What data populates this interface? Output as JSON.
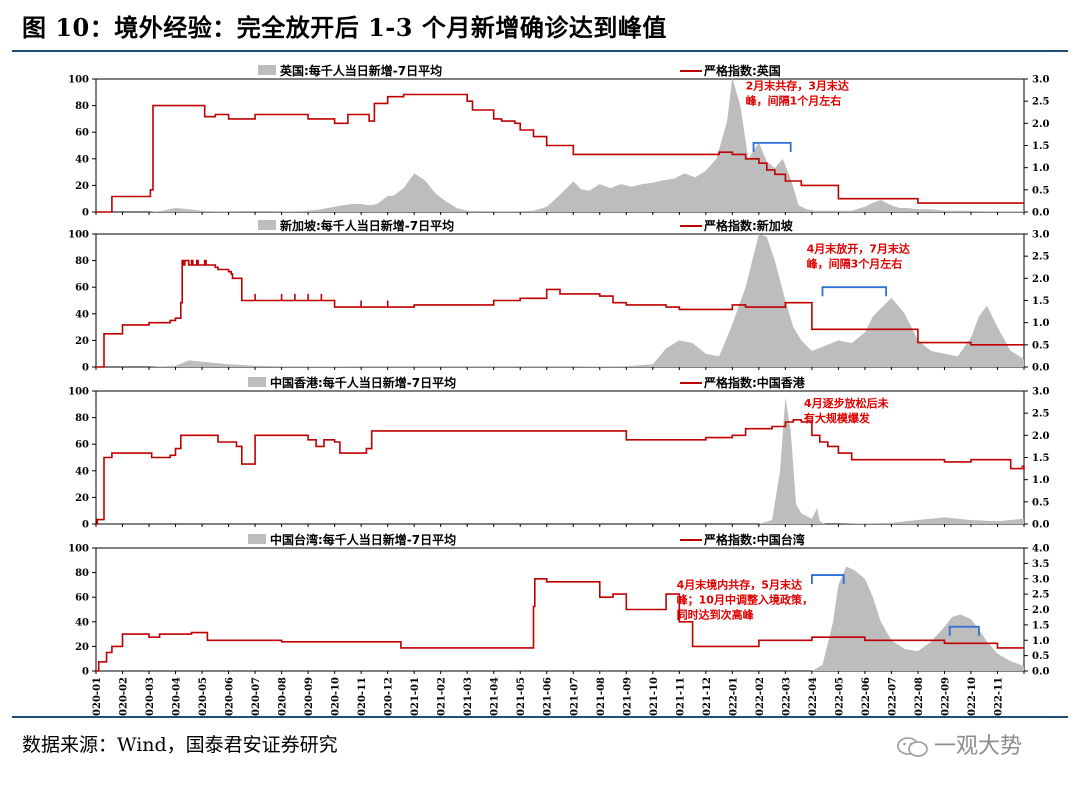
{
  "figure": {
    "title": "图 10：境外经验：完全放开后 1-3 个月新增确诊达到峰值",
    "source": "数据来源：Wind，国泰君安证券研究",
    "watermark": "一观大势"
  },
  "colors": {
    "area": "#bdbdbd",
    "line": "#c00000",
    "annotation": "#e00000",
    "bracket": "#2e6fd8",
    "rule": "#1f4e79"
  },
  "x_axis_labels": [
    "2020-01",
    "2020-02",
    "2020-03",
    "2020-04",
    "2020-05",
    "2020-06",
    "2020-07",
    "2020-08",
    "2020-09",
    "2020-10",
    "2020-11",
    "2020-12",
    "2021-01",
    "2021-02",
    "2021-03",
    "2021-04",
    "2021-05",
    "2021-06",
    "2021-07",
    "2021-08",
    "2021-09",
    "2021-10",
    "2021-11",
    "2021-12",
    "2022-01",
    "2022-02",
    "2022-03",
    "2022-04",
    "2022-05",
    "2022-06",
    "2022-07",
    "2022-08",
    "2022-09",
    "2022-10",
    "2022-11"
  ],
  "chart_data": [
    {
      "type": "area+line",
      "legend": [
        "英国:每千人当日新增-7日平均",
        "严格指数:英国"
      ],
      "ylim": [
        0,
        100
      ],
      "y2lim": [
        0,
        3
      ],
      "yticks": [
        0,
        20,
        40,
        60,
        80,
        100
      ],
      "y2ticks": [
        "0.0",
        "0.5",
        "1.0",
        "1.5",
        "2.0",
        "2.5",
        "3.0"
      ],
      "area_series": {
        "name": "英国:每千人当日新增-7日平均",
        "x": [
          0,
          1,
          1.5,
          2,
          2.5,
          3,
          3.5,
          4,
          4.5,
          5,
          5.5,
          6,
          6.5,
          7,
          7.5,
          8,
          8.5,
          9,
          9.3,
          9.7,
          10,
          10.3,
          10.6,
          11,
          11.2,
          11.6,
          12,
          12.4,
          12.8,
          13.2,
          13.6,
          14,
          15,
          16,
          16.5,
          17,
          17.5,
          18,
          18.3,
          18.6,
          19,
          19.4,
          19.8,
          20.2,
          20.6,
          21,
          21.4,
          21.8,
          22.2,
          22.6,
          23,
          23.4,
          23.8,
          24,
          24.3,
          24.6,
          25,
          25.3,
          25.6,
          25.9,
          26.2,
          26.5,
          26.8,
          27.1,
          27.5,
          28,
          28.5,
          29,
          29.3,
          29.6,
          30,
          30.3,
          30.6,
          31,
          31.5,
          32,
          32.5,
          33,
          33.5,
          34,
          34.5,
          35
        ],
        "values": [
          0,
          0,
          0,
          0,
          1,
          3,
          2,
          1,
          0.5,
          0.3,
          0.2,
          0.2,
          0.2,
          0.3,
          0.5,
          1,
          2,
          4,
          5,
          6,
          6,
          5,
          6,
          12,
          12,
          18,
          29,
          24,
          14,
          8,
          3,
          1,
          0.5,
          0.5,
          1,
          4,
          13,
          23,
          17,
          16,
          21,
          18,
          21,
          19,
          21,
          22,
          24,
          25,
          29,
          26,
          31,
          40,
          68,
          101,
          80,
          40,
          52,
          38,
          33,
          40,
          25,
          5,
          2,
          1,
          1,
          1,
          1,
          4,
          7,
          9,
          5,
          3,
          3,
          2,
          2,
          1,
          1,
          1,
          0.5,
          0.5,
          0.5,
          0.5
        ]
      },
      "line_series": {
        "name": "严格指数:英国",
        "x": [
          0,
          0.5,
          0.6,
          1,
          1.6,
          2,
          2.05,
          2.15,
          3,
          4,
          4.1,
          4.5,
          5,
          5.5,
          6,
          6.3,
          7,
          8,
          9,
          9.5,
          10,
          10.3,
          10.5,
          11,
          11.2,
          11.6,
          12,
          13,
          14,
          14.2,
          15,
          15.3,
          15.8,
          16,
          16.5,
          17,
          18,
          19,
          20,
          21,
          22,
          23,
          23.5,
          24,
          24.5,
          25,
          25.3,
          25.6,
          26,
          26.3,
          26.6,
          27,
          28,
          29,
          30,
          30.5,
          31,
          32,
          33,
          34,
          35
        ],
        "values": [
          0,
          0,
          0.35,
          0.35,
          0.35,
          0.35,
          0.5,
          2.4,
          2.4,
          2.4,
          2.15,
          2.2,
          2.1,
          2.1,
          2.2,
          2.2,
          2.2,
          2.1,
          2.0,
          2.2,
          2.2,
          2.05,
          2.45,
          2.6,
          2.6,
          2.65,
          2.65,
          2.65,
          2.5,
          2.3,
          2.1,
          2.05,
          2.0,
          1.85,
          1.7,
          1.5,
          1.3,
          1.3,
          1.3,
          1.3,
          1.3,
          1.3,
          1.35,
          1.3,
          1.2,
          1.1,
          0.95,
          0.85,
          0.7,
          0.7,
          0.6,
          0.6,
          0.3,
          0.3,
          0.3,
          0.3,
          0.2,
          0.2,
          0.2,
          0.2,
          0.2
        ]
      },
      "annotation": {
        "text": [
          "2月末共存，3月末达",
          "峰，间隔1个月左右"
        ],
        "x": 24.5,
        "y": 92
      },
      "bracket": {
        "x1": 24.8,
        "x2": 26.2,
        "y": 52
      }
    },
    {
      "type": "area+line",
      "legend": [
        "新加坡:每千人当日新增-7日平均",
        "严格指数:新加坡"
      ],
      "ylim": [
        0,
        100
      ],
      "y2lim": [
        0,
        3
      ],
      "yticks": [
        0,
        20,
        40,
        60,
        80,
        100
      ],
      "y2ticks": [
        "0.0",
        "0.5",
        "1.0",
        "1.5",
        "2.0",
        "2.5",
        "3.0"
      ],
      "area_series": {
        "name": "新加坡:每千人当日新增-7日平均",
        "x": [
          0,
          2,
          3,
          3.5,
          4,
          4.5,
          5,
          6,
          7,
          10,
          15,
          18,
          20,
          21,
          21.5,
          22,
          22.5,
          23,
          23.5,
          24,
          24.5,
          25,
          25.3,
          25.6,
          26,
          26.3,
          26.6,
          27,
          27.5,
          28,
          28.5,
          29,
          29.3,
          29.6,
          30,
          30.5,
          31,
          31.5,
          32,
          32.5,
          33,
          33.3,
          33.6,
          34,
          34.5,
          35
        ],
        "values": [
          0,
          0,
          1,
          5,
          4,
          3,
          2,
          1,
          0.5,
          0.3,
          0.3,
          0.3,
          0.5,
          2,
          14,
          20,
          18,
          10,
          8,
          32,
          60,
          100,
          98,
          80,
          50,
          30,
          20,
          12,
          16,
          20,
          18,
          26,
          38,
          44,
          52,
          40,
          20,
          12,
          10,
          8,
          22,
          38,
          46,
          30,
          12,
          6
        ]
      },
      "line_series": {
        "name": "严格指数:新加坡",
        "x": [
          0,
          0.2,
          0.3,
          0.7,
          1,
          2,
          2.5,
          2.8,
          3,
          3.2,
          3.25,
          3.3,
          3.35,
          3.5,
          3.6,
          3.65,
          3.8,
          3.85,
          4,
          4.1,
          4.15,
          4.2,
          4.5,
          4.6,
          5,
          5.1,
          5.15,
          5.5,
          6,
          6,
          6,
          7,
          7,
          7,
          7.5,
          7.5,
          7.5,
          8,
          8,
          8,
          8.5,
          8.5,
          8.5,
          9,
          9,
          9,
          10,
          10,
          10,
          11,
          11,
          11,
          12,
          13,
          14,
          15,
          15.5,
          16,
          17,
          17,
          17,
          17.5,
          18,
          19,
          19.5,
          20,
          21,
          21.5,
          22,
          23,
          23.5,
          24,
          24.5,
          25,
          26,
          26.5,
          27,
          28,
          29,
          30,
          30.5,
          31,
          32,
          33,
          34,
          35
        ],
        "values": [
          0,
          0,
          0.75,
          0.75,
          0.95,
          1.0,
          1.0,
          1.05,
          1.1,
          1.45,
          2.4,
          2.3,
          2.4,
          2.3,
          2.4,
          2.3,
          2.4,
          2.3,
          2.3,
          2.4,
          2.3,
          2.3,
          2.25,
          2.2,
          2.15,
          2.1,
          2.0,
          1.5,
          1.5,
          1.65,
          1.5,
          1.5,
          1.65,
          1.5,
          1.5,
          1.65,
          1.5,
          1.5,
          1.65,
          1.5,
          1.5,
          1.65,
          1.5,
          1.35,
          1.5,
          1.35,
          1.35,
          1.5,
          1.35,
          1.35,
          1.5,
          1.35,
          1.4,
          1.4,
          1.4,
          1.5,
          1.5,
          1.55,
          1.75,
          1.65,
          1.75,
          1.65,
          1.65,
          1.6,
          1.45,
          1.4,
          1.4,
          1.35,
          1.3,
          1.3,
          1.3,
          1.4,
          1.35,
          1.35,
          1.45,
          1.45,
          0.85,
          0.85,
          0.85,
          0.85,
          0.85,
          0.55,
          0.55,
          0.5,
          0.5,
          0.5
        ]
      },
      "annotation": {
        "text": [
          "4月末放开，7月末达",
          "峰，间隔3个月左右"
        ],
        "x": 26.8,
        "y": 86
      },
      "bracket": {
        "x1": 27.4,
        "x2": 29.8,
        "y": 60
      }
    },
    {
      "type": "area+line",
      "legend": [
        "中国香港:每千人当日新增-7日平均",
        "严格指数:中国香港"
      ],
      "ylim": [
        0,
        100
      ],
      "y2lim": [
        0,
        3
      ],
      "yticks": [
        0,
        20,
        40,
        60,
        80,
        100
      ],
      "y2ticks": [
        "0.0",
        "0.5",
        "1.0",
        "1.5",
        "2.0",
        "2.5",
        "3.0"
      ],
      "area_series": {
        "name": "中国香港:每千人当日新增-7日平均",
        "x": [
          0,
          20,
          25,
          25.5,
          25.8,
          26,
          26.2,
          26.4,
          26.6,
          27,
          27.2,
          27.3,
          27.5,
          28,
          30,
          31,
          32,
          32.5,
          33,
          34,
          35
        ],
        "values": [
          0,
          0,
          0,
          3,
          40,
          95,
          70,
          15,
          8,
          4,
          12,
          2,
          0,
          0,
          1,
          3,
          5,
          4,
          3,
          2,
          4
        ]
      },
      "line_series": {
        "name": "严格指数:中国香港",
        "x": [
          0,
          0.05,
          0.3,
          0.6,
          1,
          2,
          2.1,
          2.5,
          2.8,
          3,
          3.2,
          4,
          4.5,
          4.6,
          5,
          5.3,
          5.5,
          6,
          6,
          7,
          7.5,
          8,
          8.3,
          8.6,
          9,
          9.2,
          10,
          10.2,
          10.4,
          11,
          12,
          13,
          14,
          15,
          16,
          17,
          18,
          19,
          20,
          21,
          22,
          23,
          24,
          24.5,
          25,
          25.5,
          26,
          26.3,
          26.6,
          27,
          27.3,
          27.6,
          28,
          28.5,
          29,
          30,
          31,
          32,
          33,
          34,
          34.5,
          35
        ],
        "values": [
          0,
          0.1,
          1.5,
          1.6,
          1.6,
          1.6,
          1.5,
          1.5,
          1.55,
          1.7,
          2.0,
          2.0,
          2.0,
          1.85,
          1.85,
          1.75,
          1.35,
          1.35,
          2.0,
          2.0,
          2.0,
          1.9,
          1.75,
          1.9,
          1.85,
          1.6,
          1.6,
          1.7,
          2.1,
          2.1,
          2.1,
          2.1,
          2.1,
          2.1,
          2.1,
          2.1,
          2.1,
          2.1,
          1.9,
          1.9,
          1.9,
          1.95,
          2.0,
          2.15,
          2.15,
          2.2,
          2.3,
          2.35,
          2.3,
          2.0,
          1.85,
          1.75,
          1.6,
          1.45,
          1.45,
          1.45,
          1.45,
          1.4,
          1.45,
          1.45,
          1.25,
          1.3
        ]
      },
      "annotation": {
        "text": [
          "4月逐步放松后未",
          "有大规模爆发"
        ],
        "x": 26.7,
        "y": 88
      },
      "bracket": null
    },
    {
      "type": "area+line",
      "legend": [
        "中国台湾:每千人当日新增-7日平均",
        "严格指数:中国台湾"
      ],
      "ylim": [
        0,
        100
      ],
      "y2lim": [
        0,
        4
      ],
      "yticks": [
        0,
        20,
        40,
        60,
        80,
        100
      ],
      "y2ticks": [
        "0.0",
        "0.5",
        "1.0",
        "1.5",
        "2.0",
        "2.5",
        "3.0",
        "3.5",
        "4.0"
      ],
      "area_series": {
        "name": "中国台湾:每千人当日新增-7日平均",
        "x": [
          0,
          27,
          27.4,
          27.8,
          28,
          28.3,
          28.6,
          29,
          29.3,
          29.6,
          30,
          30.5,
          31,
          31.5,
          32,
          32.3,
          32.6,
          33,
          33.3,
          33.6,
          34,
          34.5,
          35
        ],
        "values": [
          0,
          0,
          5,
          40,
          70,
          85,
          82,
          75,
          60,
          40,
          25,
          18,
          16,
          24,
          36,
          44,
          46,
          42,
          34,
          24,
          14,
          8,
          4
        ]
      },
      "line_series": {
        "name": "严格指数:中国台湾",
        "x": [
          0,
          0.1,
          0.4,
          0.6,
          1,
          1.7,
          2,
          2.4,
          3,
          3.6,
          4,
          4.2,
          5,
          6,
          6.8,
          7,
          8,
          9,
          10,
          11,
          11.5,
          12,
          13,
          14,
          15,
          16,
          16.5,
          16.5,
          16.55,
          17,
          17.5,
          18,
          18.5,
          19,
          19.5,
          19.5,
          20,
          21,
          21.5,
          21.5,
          22,
          22.5,
          23,
          24,
          25,
          26,
          27,
          28,
          29,
          30,
          31,
          32,
          33,
          34,
          35
        ],
        "values": [
          0,
          0.3,
          0.6,
          0.8,
          1.2,
          1.2,
          1.1,
          1.2,
          1.2,
          1.25,
          1.25,
          1.0,
          1.0,
          1.0,
          1.0,
          0.95,
          0.95,
          0.95,
          0.95,
          0.95,
          0.75,
          0.75,
          0.75,
          0.75,
          0.75,
          0.75,
          0.75,
          2.1,
          3.0,
          2.9,
          2.9,
          2.9,
          2.9,
          2.4,
          2.4,
          2.5,
          2.0,
          2.0,
          2.0,
          2.5,
          1.6,
          0.8,
          0.8,
          0.8,
          1.0,
          1.0,
          1.1,
          1.1,
          1.0,
          1.0,
          1.0,
          0.9,
          0.9,
          0.75,
          0.75
        ]
      },
      "annotation": {
        "text": [
          "4月末境内共存，5月末达",
          "峰；10月中调整入境政策，",
          "同时达到次高峰"
        ],
        "x": 21.9,
        "y": 67
      },
      "bracket": [
        {
          "x1": 27.0,
          "x2": 28.2,
          "y": 78
        },
        {
          "x1": 32.2,
          "x2": 33.3,
          "y": 36
        }
      ]
    }
  ]
}
